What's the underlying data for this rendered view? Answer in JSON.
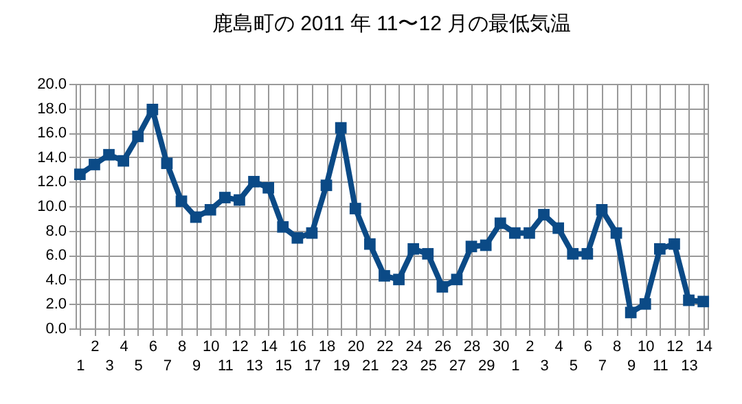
{
  "chart_data": {
    "type": "line",
    "title": "鹿島町の 2011 年 11〜12 月の最低気温",
    "categories": [
      "1",
      "2",
      "3",
      "4",
      "5",
      "6",
      "7",
      "8",
      "9",
      "10",
      "11",
      "12",
      "13",
      "14",
      "15",
      "16",
      "17",
      "18",
      "19",
      "20",
      "21",
      "22",
      "23",
      "24",
      "25",
      "26",
      "27",
      "28",
      "29",
      "30",
      "1",
      "2",
      "3",
      "4",
      "5",
      "6",
      "7",
      "8",
      "9",
      "10",
      "11",
      "12",
      "13",
      "14"
    ],
    "series": [
      {
        "color": "#0b4a86",
        "values": [
          12.6,
          13.4,
          14.2,
          13.7,
          15.7,
          17.9,
          13.5,
          10.4,
          9.1,
          9.7,
          10.7,
          10.5,
          12.0,
          11.5,
          8.3,
          7.4,
          7.8,
          11.7,
          16.4,
          9.8,
          6.9,
          4.3,
          4.0,
          6.5,
          6.1,
          3.4,
          4.0,
          6.7,
          6.8,
          8.6,
          7.8,
          7.8,
          9.3,
          8.2,
          6.1,
          6.1,
          9.7,
          7.8,
          1.3,
          2.0,
          6.5,
          6.9,
          2.3,
          2.2
        ]
      }
    ],
    "ylim": [
      0,
      20
    ],
    "yticks": [
      {
        "value": 0,
        "label": "0.0"
      },
      {
        "value": 2,
        "label": "2.0"
      },
      {
        "value": 4,
        "label": "4.0"
      },
      {
        "value": 6,
        "label": "6.0"
      },
      {
        "value": 8,
        "label": "8.0"
      },
      {
        "value": 10,
        "label": "10.0"
      },
      {
        "value": 12,
        "label": "12.0"
      },
      {
        "value": 14,
        "label": "14.0"
      },
      {
        "value": 16,
        "label": "16.0"
      },
      {
        "value": 18,
        "label": "18.0"
      },
      {
        "value": 20,
        "label": "20.0"
      }
    ],
    "grid": true,
    "marker": "square"
  }
}
